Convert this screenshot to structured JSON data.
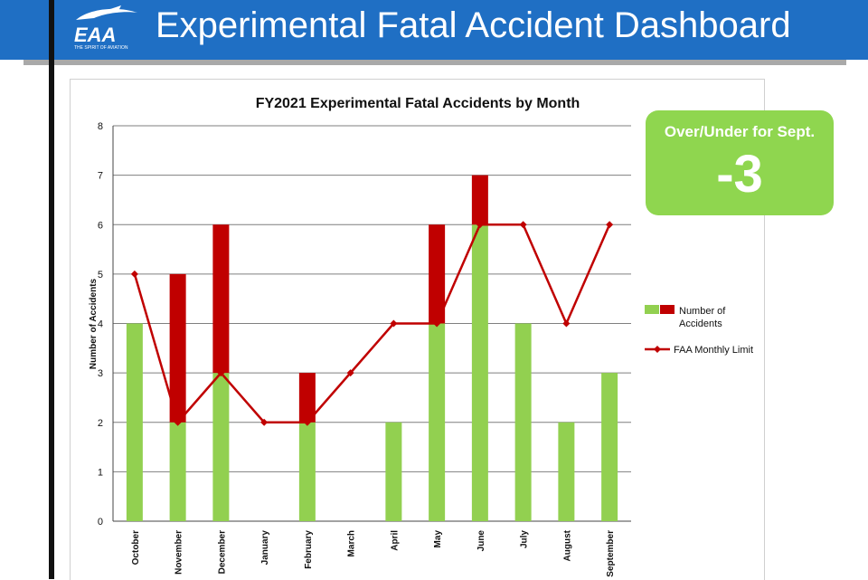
{
  "header": {
    "title": "Experimental Fatal Accident Dashboard",
    "logo_text": "EAA",
    "logo_tagline": "THE SPIRIT OF AVIATION"
  },
  "badge": {
    "label": "Over/Under for Sept.",
    "value": "-3"
  },
  "colors": {
    "header_blue": "#1f6fc4",
    "green": "#92d050",
    "red": "#c00000",
    "badge_green": "#8fd64f"
  },
  "chart_data": {
    "type": "bar",
    "title": "FY2021 Experimental Fatal Accidents by Month",
    "ylabel": "Number of Accidents",
    "xlabel": "",
    "ylim": [
      0,
      8
    ],
    "yticks": [
      0,
      1,
      2,
      3,
      4,
      5,
      6,
      7,
      8
    ],
    "grid": true,
    "legend_position": "right",
    "categories": [
      "October",
      "November",
      "December",
      "January",
      "February",
      "March",
      "April",
      "May",
      "June",
      "July",
      "August",
      "September"
    ],
    "series": [
      {
        "name": "Number of Accidents",
        "values": [
          4,
          5,
          6,
          0,
          3,
          0,
          2,
          6,
          7,
          4,
          2,
          3
        ]
      },
      {
        "name": "FAA Monthly Limit",
        "values": [
          5,
          2,
          3,
          2,
          2,
          3,
          4,
          4,
          6,
          6,
          4,
          6
        ]
      }
    ]
  }
}
